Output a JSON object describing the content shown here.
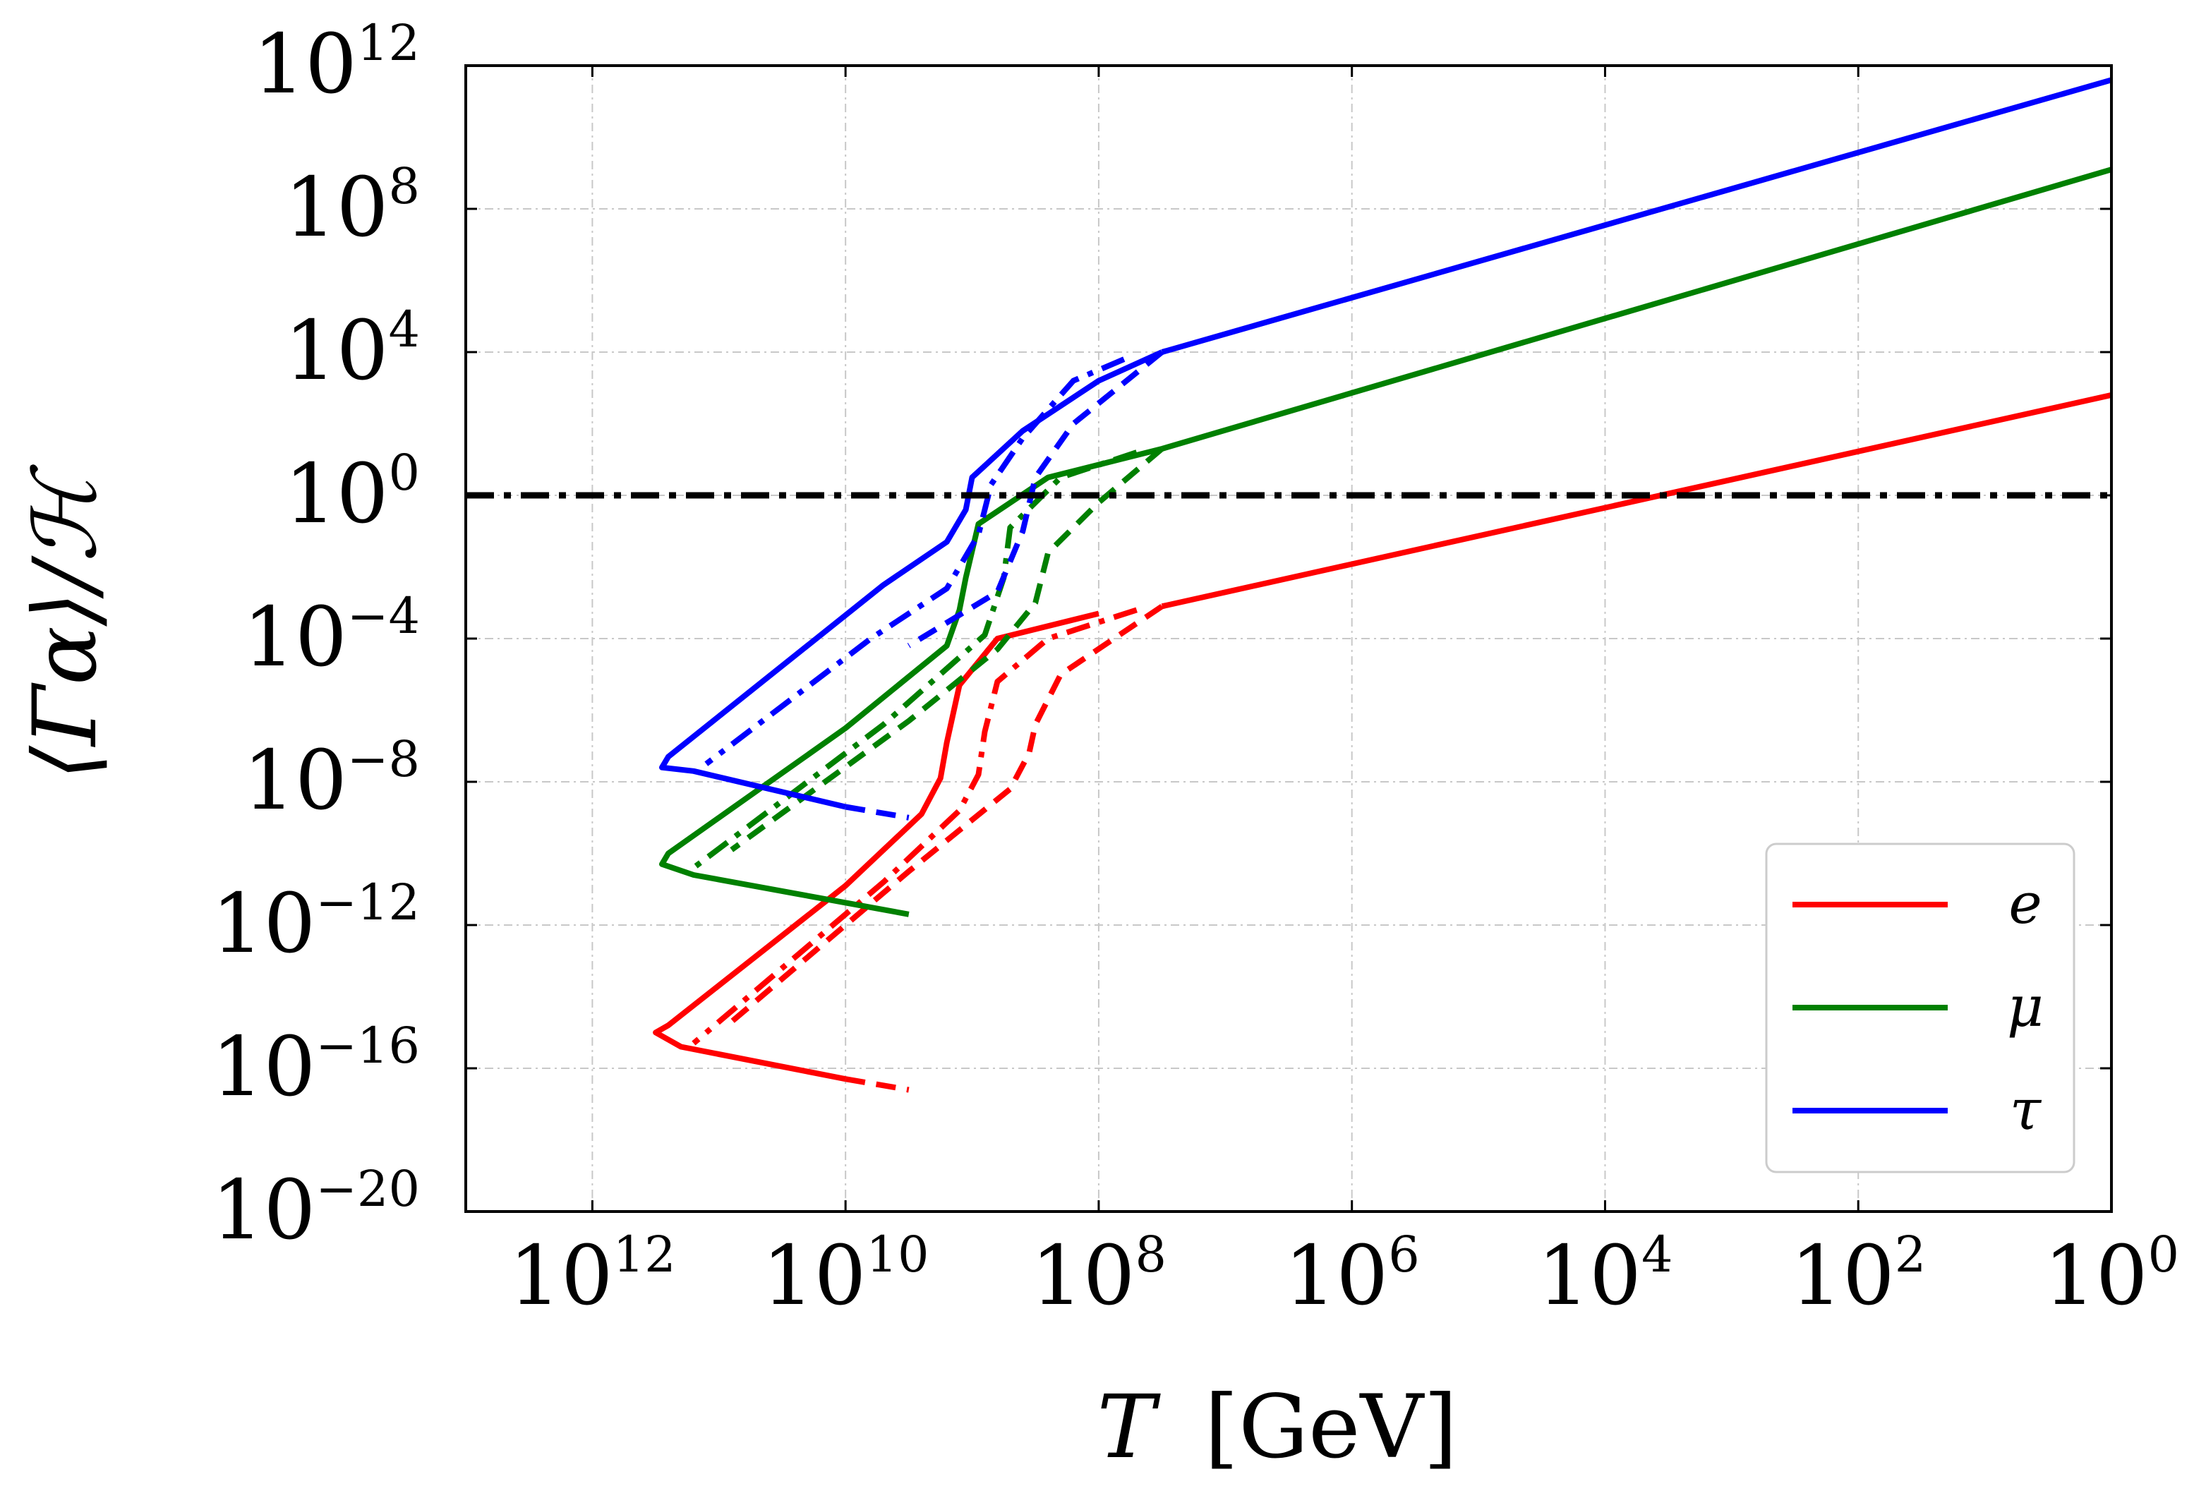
{
  "chart_data": {
    "type": "line",
    "xscale": "log",
    "yscale": "log",
    "x_inverted": true,
    "xlabel": {
      "var": "T",
      "unit": "[GeV]"
    },
    "ylabel": "⟨Γα⟩/ℋ",
    "xlim_log10": [
      13,
      0
    ],
    "ylim_log10": [
      -20,
      12
    ],
    "xtick_labels": [
      {
        "base": "10",
        "exp": "12",
        "log10": 12
      },
      {
        "base": "10",
        "exp": "10",
        "log10": 10
      },
      {
        "base": "10",
        "exp": "8",
        "log10": 8
      },
      {
        "base": "10",
        "exp": "6",
        "log10": 6
      },
      {
        "base": "10",
        "exp": "4",
        "log10": 4
      },
      {
        "base": "10",
        "exp": "2",
        "log10": 2
      },
      {
        "base": "10",
        "exp": "0",
        "log10": 0
      }
    ],
    "ytick_labels": [
      {
        "base": "10",
        "exp": "12",
        "log10": 12
      },
      {
        "base": "10",
        "exp": "8",
        "log10": 8
      },
      {
        "base": "10",
        "exp": "4",
        "log10": 4
      },
      {
        "base": "10",
        "exp": "0",
        "log10": 0
      },
      {
        "base": "10",
        "exp": "−4",
        "log10": -4
      },
      {
        "base": "10",
        "exp": "−8",
        "log10": -8
      },
      {
        "base": "10",
        "exp": "−12",
        "log10": -12
      },
      {
        "base": "10",
        "exp": "−16",
        "log10": -16
      },
      {
        "base": "10",
        "exp": "−20",
        "log10": -20
      }
    ],
    "grid": true,
    "reference_line": {
      "style": "dashdot",
      "color": "#000000",
      "y_log10": 0
    },
    "legend_position": "lower-right",
    "legend": [
      {
        "label": "e",
        "color": "#ff0000"
      },
      {
        "label": "μ",
        "color": "#008000"
      },
      {
        "label": "τ",
        "color": "#0000ff"
      }
    ],
    "series": [
      {
        "name": "e",
        "variant": "solid",
        "color": "#ff0000",
        "points_log10": [
          [
            8.0,
            -3.3
          ],
          [
            8.8,
            -4.0
          ],
          [
            9.1,
            -5.3
          ],
          [
            9.2,
            -6.9
          ],
          [
            9.25,
            -7.9
          ],
          [
            9.4,
            -8.9
          ],
          [
            10.0,
            -10.9
          ],
          [
            11.4,
            -14.8
          ],
          [
            11.5,
            -15.0
          ],
          [
            11.3,
            -15.4
          ],
          [
            10.0,
            -16.3
          ]
        ]
      },
      {
        "name": "e",
        "variant": "dashed-tail",
        "color": "#ff0000",
        "points_log10": [
          [
            10.0,
            -16.3
          ],
          [
            9.5,
            -16.6
          ]
        ]
      },
      {
        "name": "e",
        "variant": "dashdot",
        "color": "#ff0000",
        "points_log10": [
          [
            7.7,
            -3.2
          ],
          [
            8.4,
            -4.0
          ],
          [
            8.8,
            -5.2
          ],
          [
            8.9,
            -6.6
          ],
          [
            8.95,
            -7.8
          ],
          [
            9.1,
            -8.8
          ],
          [
            9.7,
            -10.8
          ],
          [
            11.2,
            -15.3
          ]
        ]
      },
      {
        "name": "e",
        "variant": "dashed",
        "color": "#ff0000",
        "points_log10": [
          [
            7.5,
            -3.1
          ],
          [
            8.3,
            -5.0
          ],
          [
            8.5,
            -6.4
          ],
          [
            8.55,
            -7.2
          ],
          [
            8.7,
            -8.2
          ],
          [
            9.5,
            -10.5
          ],
          [
            10.9,
            -14.7
          ]
        ]
      },
      {
        "name": "μ",
        "variant": "solid",
        "color": "#008000",
        "points_log10": [
          [
            7.5,
            1.3
          ],
          [
            8.4,
            0.5
          ],
          [
            8.95,
            -0.8
          ],
          [
            9.05,
            -2.3
          ],
          [
            9.1,
            -3.2
          ],
          [
            9.2,
            -4.2
          ],
          [
            10.0,
            -6.5
          ],
          [
            11.4,
            -10.0
          ],
          [
            11.45,
            -10.3
          ],
          [
            11.2,
            -10.6
          ],
          [
            9.5,
            -11.7
          ]
        ]
      },
      {
        "name": "μ",
        "variant": "dashdot",
        "color": "#008000",
        "points_log10": [
          [
            7.7,
            1.2
          ],
          [
            8.3,
            0.5
          ],
          [
            8.7,
            -0.9
          ],
          [
            8.75,
            -2.3
          ],
          [
            8.9,
            -3.9
          ],
          [
            9.7,
            -6.4
          ],
          [
            11.2,
            -10.4
          ]
        ]
      },
      {
        "name": "μ",
        "variant": "dashed",
        "color": "#008000",
        "points_log10": [
          [
            7.5,
            1.3
          ],
          [
            8.0,
            -0.2
          ],
          [
            8.4,
            -1.6
          ],
          [
            8.5,
            -3.0
          ],
          [
            8.8,
            -4.3
          ],
          [
            9.5,
            -6.3
          ],
          [
            10.9,
            -9.9
          ]
        ]
      },
      {
        "name": "τ",
        "variant": "solid",
        "color": "#0000ff",
        "points_log10": [
          [
            7.5,
            4.0
          ],
          [
            8.0,
            3.2
          ],
          [
            8.6,
            1.8
          ],
          [
            9.0,
            0.5
          ],
          [
            9.05,
            -0.4
          ],
          [
            9.2,
            -1.3
          ],
          [
            9.7,
            -2.5
          ],
          [
            11.4,
            -7.3
          ],
          [
            11.45,
            -7.6
          ],
          [
            11.2,
            -7.7
          ],
          [
            10.0,
            -8.7
          ]
        ]
      },
      {
        "name": "τ",
        "variant": "dashed-tail",
        "color": "#0000ff",
        "points_log10": [
          [
            10.0,
            -8.7
          ],
          [
            9.5,
            -9.0
          ]
        ]
      },
      {
        "name": "τ",
        "variant": "dashdot",
        "color": "#0000ff",
        "points_log10": [
          [
            7.8,
            3.8
          ],
          [
            8.2,
            3.2
          ],
          [
            8.6,
            1.6
          ],
          [
            8.85,
            0.3
          ],
          [
            8.95,
            -1.1
          ],
          [
            9.2,
            -2.6
          ],
          [
            9.8,
            -4.0
          ],
          [
            11.1,
            -7.5
          ]
        ]
      },
      {
        "name": "τ",
        "variant": "dashed",
        "color": "#0000ff",
        "points_log10": [
          [
            7.5,
            4.0
          ],
          [
            8.2,
            2.0
          ],
          [
            8.5,
            0.5
          ],
          [
            8.6,
            -1.0
          ],
          [
            8.8,
            -2.7
          ],
          [
            9.5,
            -4.2
          ]
        ]
      },
      {
        "name": "e",
        "variant": "asymptote",
        "color": "#ff0000",
        "points_log10": [
          [
            7.5,
            -3.1
          ],
          [
            0,
            2.8
          ]
        ]
      },
      {
        "name": "μ",
        "variant": "asymptote",
        "color": "#008000",
        "points_log10": [
          [
            7.5,
            1.3
          ],
          [
            0,
            9.1
          ]
        ]
      },
      {
        "name": "τ",
        "variant": "asymptote",
        "color": "#0000ff",
        "points_log10": [
          [
            7.5,
            4.0
          ],
          [
            0,
            11.6
          ]
        ]
      }
    ]
  }
}
